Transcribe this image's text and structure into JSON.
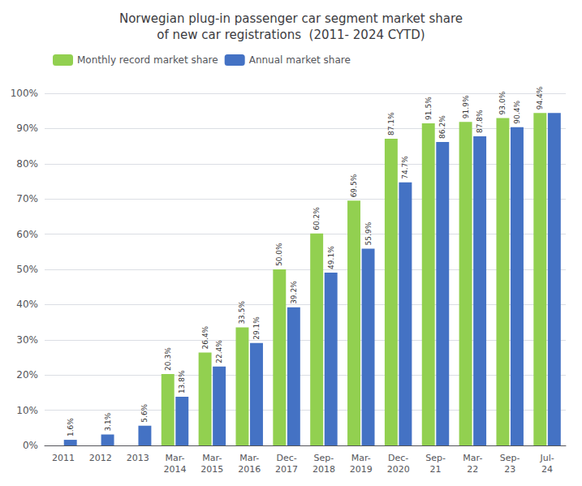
{
  "chart_data": {
    "type": "bar",
    "title": "Norwegian plug-in passenger car segment market share\nof new car registrations  (2011- 2024 CYTD)",
    "categories": [
      "2011",
      "2012",
      "2013",
      "Mar-\n2014",
      "Mar-\n2015",
      "Mar-\n2016",
      "Dec-\n2017",
      "Sep-\n2018",
      "Mar-\n2019",
      "Dec-\n2020",
      "Sep-\n21",
      "Mar-\n22",
      "Sep-\n23",
      "Jul-\n24"
    ],
    "series": [
      {
        "name": "Monthly record market share",
        "color": "#92d050",
        "values": [
          null,
          null,
          null,
          20.3,
          26.4,
          33.5,
          50.0,
          60.2,
          69.5,
          87.1,
          91.5,
          91.9,
          93.0,
          94.4
        ],
        "value_labels": [
          null,
          null,
          null,
          "20.3%",
          "26.4%",
          "33.5%",
          "50.0%",
          "60.2%",
          "69.5%",
          "87.1%",
          "91.5%",
          "91.9%",
          "93.0%",
          "94.4%"
        ]
      },
      {
        "name": "Annual market share",
        "color": "#4472c4",
        "values": [
          1.6,
          3.1,
          5.6,
          13.8,
          22.4,
          29.1,
          39.2,
          49.1,
          55.9,
          74.7,
          86.2,
          87.8,
          90.4,
          94.4
        ],
        "value_labels": [
          "1.6%",
          "3.1%",
          "5.6%",
          "13.8%",
          "22.4%",
          "29.1%",
          "39.2%",
          "49.1%",
          "55.9%",
          "74.7%",
          "86.2%",
          "87.8%",
          "90.4%",
          null
        ]
      }
    ],
    "ylim": [
      0,
      100
    ],
    "yticks": [
      {
        "value": 0,
        "label": "0%"
      },
      {
        "value": 10,
        "label": "10%"
      },
      {
        "value": 20,
        "label": "20%"
      },
      {
        "value": 30,
        "label": "30%"
      },
      {
        "value": 40,
        "label": "40%"
      },
      {
        "value": 50,
        "label": "50%"
      },
      {
        "value": 60,
        "label": "60%"
      },
      {
        "value": 70,
        "label": "70%"
      },
      {
        "value": 80,
        "label": "80%"
      },
      {
        "value": 90,
        "label": "90%"
      },
      {
        "value": 100,
        "label": "100%"
      }
    ],
    "grid": true,
    "legend": "upper left",
    "data_labels": true
  }
}
